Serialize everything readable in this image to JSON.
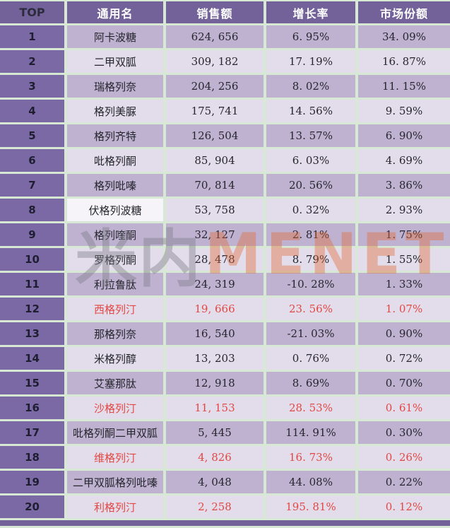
{
  "chart_data": {
    "type": "table",
    "title": "",
    "columns": [
      "TOP",
      "通用名",
      "销售额",
      "增长率",
      "市场份额"
    ],
    "highlight_color": "#e34743",
    "rows": [
      {
        "rank": "1",
        "name": "阿卡波糖",
        "sales": "624, 656",
        "growth": "6. 95%",
        "share": "34. 09%",
        "red": false,
        "name_white": false
      },
      {
        "rank": "2",
        "name": "二甲双胍",
        "sales": "309, 182",
        "growth": "17. 19%",
        "share": "16. 87%",
        "red": false,
        "name_white": false
      },
      {
        "rank": "3",
        "name": "瑞格列奈",
        "sales": "204, 256",
        "growth": "8. 02%",
        "share": "11. 15%",
        "red": false,
        "name_white": false
      },
      {
        "rank": "4",
        "name": "格列美脲",
        "sales": "175, 741",
        "growth": "14. 56%",
        "share": "9. 59%",
        "red": false,
        "name_white": false
      },
      {
        "rank": "5",
        "name": "格列齐特",
        "sales": "126, 504",
        "growth": "13. 57%",
        "share": "6. 90%",
        "red": false,
        "name_white": false
      },
      {
        "rank": "6",
        "name": "吡格列酮",
        "sales": "85, 904",
        "growth": "6. 03%",
        "share": "4. 69%",
        "red": false,
        "name_white": false
      },
      {
        "rank": "7",
        "name": "格列吡嗪",
        "sales": "70, 814",
        "growth": "20. 56%",
        "share": "3. 86%",
        "red": false,
        "name_white": false
      },
      {
        "rank": "8",
        "name": "伏格列波糖",
        "sales": "53, 758",
        "growth": "0. 32%",
        "share": "2. 93%",
        "red": false,
        "name_white": true
      },
      {
        "rank": "9",
        "name": "格列喹酮",
        "sales": "32, 127",
        "growth": "2. 81%",
        "share": "1. 75%",
        "red": false,
        "name_white": false
      },
      {
        "rank": "10",
        "name": "罗格列酮",
        "sales": "28, 478",
        "growth": "8. 79%",
        "share": "1. 55%",
        "red": false,
        "name_white": false
      },
      {
        "rank": "11",
        "name": "利拉鲁肽",
        "sales": "24, 319",
        "growth": "-10. 28%",
        "share": "1. 33%",
        "red": false,
        "name_white": false
      },
      {
        "rank": "12",
        "name": "西格列汀",
        "sales": "19, 666",
        "growth": "23. 56%",
        "share": "1. 07%",
        "red": true,
        "name_white": false
      },
      {
        "rank": "13",
        "name": "那格列奈",
        "sales": "16, 540",
        "growth": "-21. 03%",
        "share": "0. 90%",
        "red": false,
        "name_white": false
      },
      {
        "rank": "14",
        "name": "米格列醇",
        "sales": "13, 203",
        "growth": "0. 76%",
        "share": "0. 72%",
        "red": false,
        "name_white": false
      },
      {
        "rank": "15",
        "name": "艾塞那肽",
        "sales": "12, 918",
        "growth": "8. 69%",
        "share": "0. 70%",
        "red": false,
        "name_white": false
      },
      {
        "rank": "16",
        "name": "沙格列汀",
        "sales": "11, 153",
        "growth": "28. 53%",
        "share": "0. 61%",
        "red": true,
        "name_white": false
      },
      {
        "rank": "17",
        "name": "吡格列酮二甲双胍",
        "sales": "5, 445",
        "growth": "114. 91%",
        "share": "0. 30%",
        "red": false,
        "name_white": false
      },
      {
        "rank": "18",
        "name": "维格列汀",
        "sales": "4, 826",
        "growth": "16. 73%",
        "share": "0. 26%",
        "red": true,
        "name_white": false
      },
      {
        "rank": "19",
        "name": "二甲双胍格列吡嗪",
        "sales": "4, 048",
        "growth": "44. 08%",
        "share": "0. 22%",
        "red": false,
        "name_white": false
      },
      {
        "rank": "20",
        "name": "利格列汀",
        "sales": "2, 258",
        "growth": "195. 81%",
        "share": "0. 12%",
        "red": true,
        "name_white": false
      }
    ]
  },
  "watermark": {
    "cn": "米内",
    "en": "MENET"
  },
  "colors": {
    "header_bg": "#73629a",
    "rank_bg": "#7b69a6",
    "row_odd": "#bfb2d1",
    "row_even": "#e3ddeb",
    "row8_name_bg": "#f6f4f8",
    "grid_line": "#d7e9d5",
    "red_text": "#e34743",
    "dark_text": "#26262e",
    "watermark_orange": "#e06a35",
    "watermark_gray": "#7d7d87"
  }
}
